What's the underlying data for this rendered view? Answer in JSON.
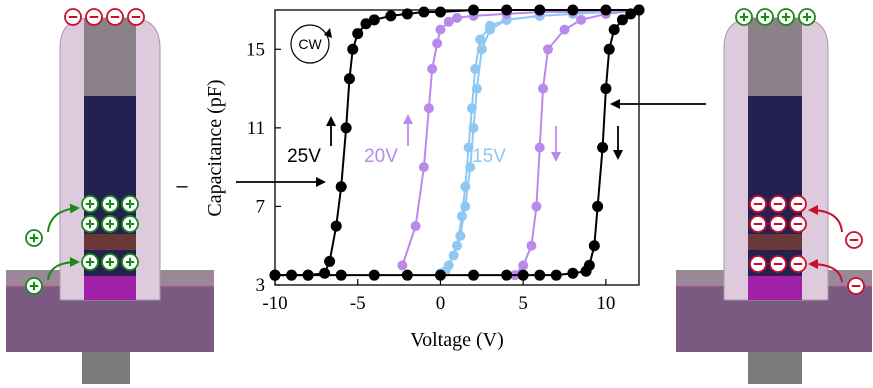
{
  "chart_data": {
    "type": "scatter",
    "title": "",
    "xlabel": "Voltage (V)",
    "ylabel": "Capacitance (pF)",
    "xlim": [
      -10,
      12
    ],
    "ylim": [
      3,
      17
    ],
    "xticks": [
      -10,
      -5,
      0,
      5,
      10
    ],
    "yticks": [
      3,
      7,
      11,
      15
    ],
    "grid": false,
    "sweep_direction_label": "CW",
    "series": [
      {
        "name": "25V",
        "color": "#000000",
        "forward": {
          "x": [
            -10,
            -9,
            -8,
            -7,
            -6.7,
            -6.3,
            -6,
            -5.7,
            -5.5,
            -5.3,
            -5,
            -4.5,
            -4,
            -3,
            -2,
            -1,
            0,
            2,
            4,
            6,
            8,
            10,
            12
          ],
          "y": [
            3.5,
            3.5,
            3.5,
            3.6,
            4.2,
            6,
            8,
            11,
            13.5,
            15,
            15.8,
            16.3,
            16.5,
            16.7,
            16.8,
            16.9,
            16.9,
            17,
            17,
            17,
            17,
            17,
            17
          ]
        },
        "reverse": {
          "x": [
            12,
            11.5,
            11,
            10.5,
            10.2,
            10,
            9.8,
            9.5,
            9.3,
            9,
            8.8,
            8,
            7,
            6,
            5,
            4,
            2,
            0,
            -2,
            -4,
            -6,
            -8,
            -10
          ],
          "y": [
            17,
            16.8,
            16.5,
            16,
            15,
            13,
            10,
            7,
            5,
            4,
            3.7,
            3.6,
            3.5,
            3.5,
            3.5,
            3.5,
            3.5,
            3.5,
            3.5,
            3.5,
            3.5,
            3.5,
            3.5
          ]
        },
        "annotation": "25V",
        "forward_arrow": "up",
        "reverse_arrow": "down"
      },
      {
        "name": "20V",
        "color": "#b98aec",
        "forward": {
          "x": [
            -2.3,
            -1.5,
            -1,
            -0.7,
            -0.5,
            -0.2,
            0,
            0.5,
            1,
            2,
            4,
            6,
            8,
            10,
            12
          ],
          "y": [
            4,
            6,
            9,
            12,
            14,
            15.3,
            16,
            16.4,
            16.6,
            16.7,
            16.8,
            16.9,
            16.9,
            17,
            17
          ]
        },
        "reverse": {
          "x": [
            12,
            10,
            8.5,
            7.5,
            6.5,
            6.2,
            6,
            5.8,
            5.5,
            5,
            4.5
          ],
          "y": [
            17,
            16.8,
            16.5,
            16,
            15,
            13,
            10,
            7,
            5,
            4,
            3.5
          ]
        },
        "annotation": "20V",
        "forward_arrow": "up",
        "reverse_arrow": "down"
      },
      {
        "name": "15V",
        "color": "#8fc8f2",
        "forward": {
          "x": [
            0,
            0.5,
            1,
            1.3,
            1.5,
            1.7,
            1.9,
            2.1,
            2.4,
            3,
            4,
            6,
            8,
            10,
            12
          ],
          "y": [
            3.6,
            4,
            5,
            6.5,
            8,
            10,
            12,
            14,
            15.5,
            16.2,
            16.5,
            16.7,
            16.8,
            16.9,
            17
          ]
        },
        "reverse": {
          "x": [
            12,
            10,
            8,
            6,
            4,
            3,
            2.5,
            2.2,
            2,
            1.8,
            1.5,
            1.2,
            0.8,
            0.3
          ],
          "y": [
            17,
            16.9,
            16.8,
            16.7,
            16.5,
            16,
            15,
            13,
            11,
            9,
            7,
            5.5,
            4.5,
            3.7
          ]
        },
        "annotation": "15V"
      }
    ]
  },
  "device_left": {
    "top_charges": [
      "⊖",
      "⊖",
      "⊖",
      "⊖"
    ],
    "upper_charges": [
      "⊕",
      "⊕",
      "⊕",
      "⊕",
      "⊕",
      "⊕"
    ],
    "lower_charges": [
      "⊕",
      "⊕",
      "⊕"
    ],
    "side_charges": [
      "⊕",
      "⊕"
    ],
    "pointer_symbol": "–"
  },
  "device_right": {
    "top_charges": [
      "⊕",
      "⊕",
      "⊕",
      "⊕"
    ],
    "upper_charges": [
      "⊖",
      "⊖",
      "⊖",
      "⊖",
      "⊖",
      "⊖"
    ],
    "lower_charges": [
      "⊖",
      "⊖",
      "⊖"
    ],
    "side_charges": [
      "⊖",
      "⊖"
    ]
  },
  "colors": {
    "positive": "#1a8a1a",
    "negative": "#c8102e",
    "substrate": "#7a5a80",
    "channel_dark": "#242050",
    "gate_metal": "#8a8288",
    "oxide_shell": "#d8c8d8",
    "trap_layer": "#6a3838",
    "contact": "#a020a8"
  }
}
